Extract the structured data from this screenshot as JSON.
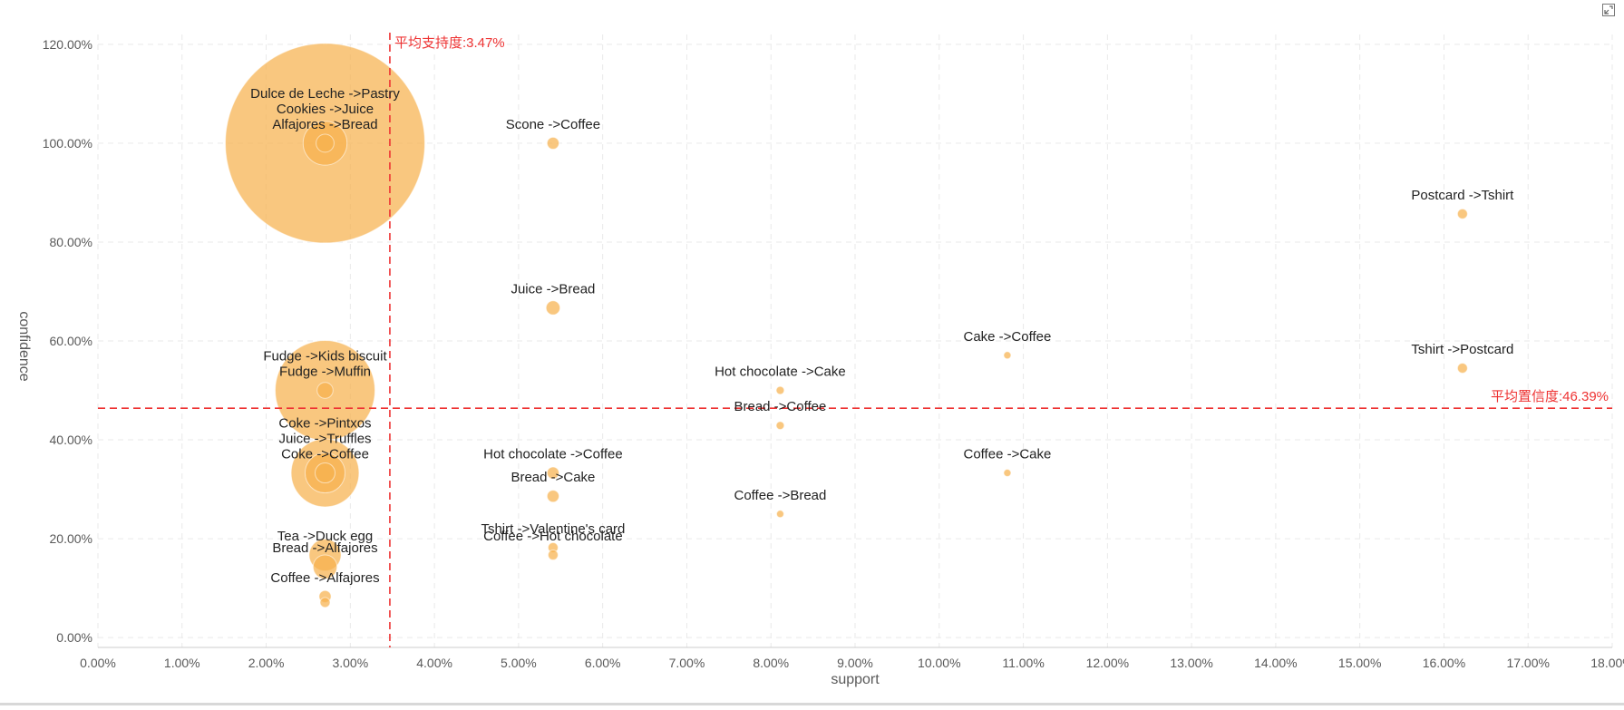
{
  "colors": {
    "bubble": "#f7b24d",
    "bubble_label": "#222222",
    "reference_line": "#ee3333",
    "grid": "#e9e9e9",
    "axis": "#cccccc",
    "tick": "#595959"
  },
  "icons": {
    "expand": "expand-icon"
  },
  "chart_data": {
    "type": "scatter",
    "subtype": "bubble",
    "xlabel": "support",
    "ylabel": "confidence",
    "xlim": [
      0,
      18
    ],
    "ylim": [
      -2,
      122
    ],
    "x_unit": "%",
    "y_unit": "%",
    "grid": true,
    "x_ticks": [
      "0.00%",
      "1.00%",
      "2.00%",
      "3.00%",
      "4.00%",
      "5.00%",
      "6.00%",
      "7.00%",
      "8.00%",
      "9.00%",
      "10.00%",
      "11.00%",
      "12.00%",
      "13.00%",
      "14.00%",
      "15.00%",
      "16.00%",
      "17.00%",
      "18.00%"
    ],
    "y_ticks": [
      "0.00%",
      "20.00%",
      "40.00%",
      "60.00%",
      "80.00%",
      "100.00%",
      "120.00%"
    ],
    "reference_lines": [
      {
        "axis": "x",
        "value": 3.47,
        "label": "平均支持度:3.47%"
      },
      {
        "axis": "y",
        "value": 46.39,
        "label": "平均置信度:46.39%"
      }
    ],
    "points": [
      {
        "label": "Dulce de Leche ->Pastry",
        "x": 2.7,
        "y": 100,
        "size": 1.0
      },
      {
        "label": "Cookies ->Juice",
        "x": 2.7,
        "y": 100,
        "size": 0.22
      },
      {
        "label": "Alfajores ->Bread",
        "x": 2.7,
        "y": 100,
        "size": 0.09
      },
      {
        "label": "Scone ->Coffee",
        "x": 5.41,
        "y": 100,
        "size": 0.06
      },
      {
        "label": "Postcard ->Tshirt",
        "x": 16.22,
        "y": 85.7,
        "size": 0.05
      },
      {
        "label": "Juice ->Bread",
        "x": 5.41,
        "y": 66.7,
        "size": 0.07
      },
      {
        "label": "Fudge ->Kids biscuit",
        "x": 2.7,
        "y": 50,
        "size": 0.5
      },
      {
        "label": "Fudge ->Muffin",
        "x": 2.7,
        "y": 50,
        "size": 0.08
      },
      {
        "label": "Cake ->Coffee",
        "x": 10.81,
        "y": 57.1,
        "size": 0.03
      },
      {
        "label": "Tshirt ->Postcard",
        "x": 16.22,
        "y": 54.5,
        "size": 0.05
      },
      {
        "label": "Hot chocolate ->Cake",
        "x": 8.11,
        "y": 50,
        "size": 0.04
      },
      {
        "label": "Bread ->Coffee",
        "x": 8.11,
        "y": 42.9,
        "size": 0.04
      },
      {
        "label": "Coke ->Pintxos",
        "x": 2.7,
        "y": 33.3,
        "size": 0.34
      },
      {
        "label": "Juice ->Truffles",
        "x": 2.7,
        "y": 33.3,
        "size": 0.2
      },
      {
        "label": "Coke ->Coffee",
        "x": 2.7,
        "y": 33.3,
        "size": 0.1
      },
      {
        "label": "Hot chocolate ->Coffee",
        "x": 5.41,
        "y": 33.3,
        "size": 0.06
      },
      {
        "label": "Coffee ->Cake",
        "x": 10.81,
        "y": 33.3,
        "size": 0.03
      },
      {
        "label": "Bread ->Cake",
        "x": 5.41,
        "y": 28.6,
        "size": 0.06
      },
      {
        "label": "Coffee ->Bread",
        "x": 8.11,
        "y": 25,
        "size": 0.025
      },
      {
        "label": "Tea ->Duck egg",
        "x": 2.7,
        "y": 16.7,
        "size": 0.16
      },
      {
        "label": "Bread ->Alfajores",
        "x": 2.7,
        "y": 14.3,
        "size": 0.12
      },
      {
        "label": "Tshirt ->Valentine's card",
        "x": 5.41,
        "y": 18.2,
        "size": 0.05
      },
      {
        "label": "Coffee ->Hot chocolate",
        "x": 5.41,
        "y": 16.7,
        "size": 0.05
      },
      {
        "label": "Coffee ->Alfajores",
        "x": 2.7,
        "y": 8.3,
        "size": 0.06
      },
      {
        "label": "",
        "x": 2.7,
        "y": 7.1,
        "size": 0.05
      }
    ]
  }
}
